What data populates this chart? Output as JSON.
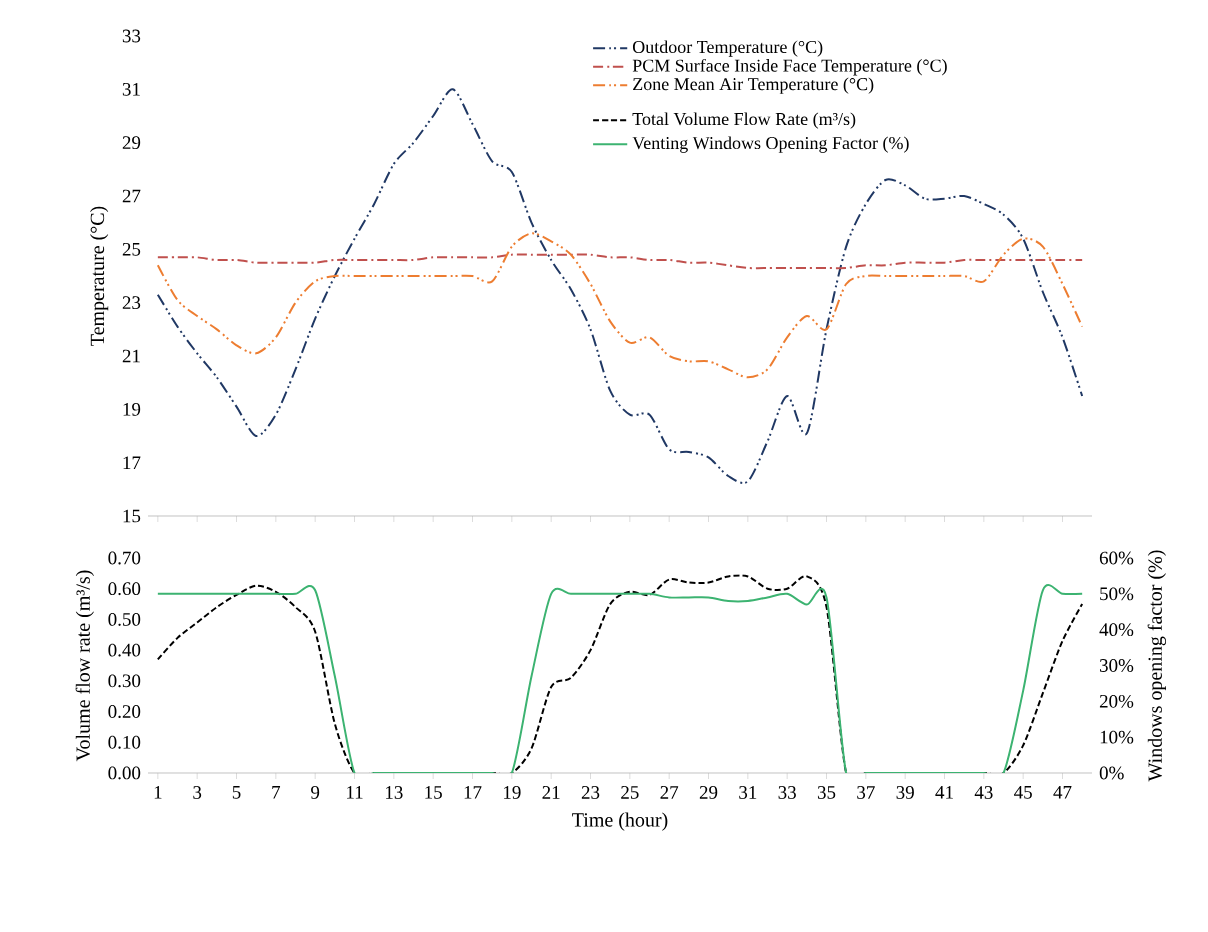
{
  "chart_data": [
    {
      "type": "line",
      "ylabel": "Temperature (°C)",
      "legend": "top",
      "tick_labels": "y",
      "x": [
        1,
        2,
        3,
        4,
        5,
        6,
        7,
        8,
        9,
        10,
        11,
        12,
        13,
        14,
        15,
        16,
        17,
        18,
        19,
        20,
        21,
        22,
        23,
        24,
        25,
        26,
        27,
        28,
        29,
        30,
        31,
        32,
        33,
        34,
        35,
        36,
        37,
        38,
        39,
        40,
        41,
        42,
        43,
        44,
        45,
        46,
        47,
        48
      ],
      "xlim": [
        0.5,
        48.5
      ],
      "xticks": [
        1,
        3,
        5,
        7,
        9,
        11,
        13,
        15,
        17,
        19,
        21,
        23,
        25,
        27,
        29,
        31,
        33,
        35,
        37,
        39,
        41,
        43,
        45,
        47
      ],
      "ylim": [
        15,
        33
      ],
      "yticks": [
        15,
        17,
        19,
        21,
        23,
        25,
        27,
        29,
        31,
        33
      ],
      "series": [
        {
          "name": "Outdoor Temperature (°C)",
          "color": "#203864",
          "line_style": "dashdotdot",
          "values": [
            23.3,
            22.1,
            21.1,
            20.2,
            19.1,
            18.0,
            18.8,
            20.5,
            22.4,
            24.0,
            25.4,
            26.7,
            28.2,
            29.0,
            30.0,
            31.0,
            29.7,
            28.3,
            27.9,
            26.0,
            24.6,
            23.5,
            22.0,
            19.7,
            18.8,
            18.8,
            17.5,
            17.4,
            17.2,
            16.5,
            16.3,
            17.8,
            19.5,
            18.1,
            22.0,
            25.1,
            26.7,
            27.6,
            27.4,
            26.9,
            26.9,
            27.0,
            26.7,
            26.3,
            25.4,
            23.4,
            21.7,
            19.5
          ]
        },
        {
          "name": "PCM Surface Inside Face Temperature (°C)",
          "color": "#c0504d",
          "line_style": "dashdot",
          "values": [
            24.7,
            24.7,
            24.7,
            24.6,
            24.6,
            24.5,
            24.5,
            24.5,
            24.5,
            24.6,
            24.6,
            24.6,
            24.6,
            24.6,
            24.7,
            24.7,
            24.7,
            24.7,
            24.8,
            24.8,
            24.8,
            24.8,
            24.8,
            24.7,
            24.7,
            24.6,
            24.6,
            24.5,
            24.5,
            24.4,
            24.3,
            24.3,
            24.3,
            24.3,
            24.3,
            24.3,
            24.4,
            24.4,
            24.5,
            24.5,
            24.5,
            24.6,
            24.6,
            24.6,
            24.6,
            24.6,
            24.6,
            24.6
          ]
        },
        {
          "name": "Zone Mean Air Temperature (°C)",
          "color": "#ed7d31",
          "line_style": "dashdotdot",
          "values": [
            24.4,
            23.1,
            22.5,
            22.0,
            21.4,
            21.1,
            21.7,
            23.0,
            23.8,
            24.0,
            24.0,
            24.0,
            24.0,
            24.0,
            24.0,
            24.0,
            24.0,
            23.8,
            25.1,
            25.6,
            25.3,
            24.8,
            23.7,
            22.3,
            21.5,
            21.7,
            21.0,
            20.8,
            20.8,
            20.5,
            20.2,
            20.5,
            21.7,
            22.5,
            22.0,
            23.7,
            24.0,
            24.0,
            24.0,
            24.0,
            24.0,
            24.0,
            23.8,
            24.8,
            25.4,
            25.1,
            23.7,
            22.1
          ]
        }
      ]
    },
    {
      "type": "line",
      "xlabel": "Time (hour)",
      "ylabel": "Volume flow rate (m³/s)",
      "y2label": "Windows opening factor (%)",
      "legend": "top",
      "x": [
        1,
        2,
        3,
        4,
        5,
        6,
        7,
        8,
        9,
        10,
        11,
        12,
        13,
        14,
        15,
        16,
        17,
        18,
        19,
        20,
        21,
        22,
        23,
        24,
        25,
        26,
        27,
        28,
        29,
        30,
        31,
        32,
        33,
        34,
        35,
        36,
        37,
        38,
        39,
        40,
        41,
        42,
        43,
        44,
        45,
        46,
        47,
        48
      ],
      "xlim": [
        0.5,
        48.5
      ],
      "xticks": [
        1,
        3,
        5,
        7,
        9,
        11,
        13,
        15,
        17,
        19,
        21,
        23,
        25,
        27,
        29,
        31,
        33,
        35,
        37,
        39,
        41,
        43,
        45,
        47
      ],
      "ylim": [
        0,
        0.7
      ],
      "yticks": [
        {
          "value": 0,
          "label": "0.00"
        },
        {
          "value": 0.1,
          "label": "0.10"
        },
        {
          "value": 0.2,
          "label": "0.20"
        },
        {
          "value": 0.3,
          "label": "0.30"
        },
        {
          "value": 0.4,
          "label": "0.40"
        },
        {
          "value": 0.5,
          "label": "0.50"
        },
        {
          "value": 0.6,
          "label": "0.60"
        },
        {
          "value": 0.7,
          "label": "0.70"
        }
      ],
      "y2lim": [
        0,
        60
      ],
      "y2ticks": [
        {
          "value": 0,
          "label": "0%"
        },
        {
          "value": 10,
          "label": "10%"
        },
        {
          "value": 20,
          "label": "20%"
        },
        {
          "value": 30,
          "label": "30%"
        },
        {
          "value": 40,
          "label": "40%"
        },
        {
          "value": 50,
          "label": "50%"
        },
        {
          "value": 60,
          "label": "60%"
        }
      ],
      "series": [
        {
          "name": "Total Volume Flow Rate (m³/s)",
          "color": "#000000",
          "line_style": "dashed",
          "values": [
            0.37,
            0.44,
            0.49,
            0.54,
            0.58,
            0.61,
            0.59,
            0.54,
            0.46,
            0.16,
            0.0,
            0.0,
            0.0,
            0.0,
            0.0,
            0.0,
            0.0,
            0.0,
            0.0,
            0.08,
            0.28,
            0.31,
            0.4,
            0.55,
            0.59,
            0.58,
            0.63,
            0.62,
            0.62,
            0.64,
            0.64,
            0.6,
            0.6,
            0.64,
            0.54,
            0.0,
            0.0,
            0.0,
            0.0,
            0.0,
            0.0,
            0.0,
            0.0,
            0.0,
            0.09,
            0.26,
            0.43,
            0.55
          ]
        },
        {
          "name": "Venting Windows Opening Factor (%)",
          "color": "#3cb371",
          "line_style": "solid",
          "axis": "y2",
          "values": [
            50,
            50,
            50,
            50,
            50,
            50,
            50,
            50,
            51,
            27,
            0,
            0,
            0,
            0,
            0,
            0,
            0,
            0,
            0,
            27,
            50,
            50,
            50,
            50,
            50,
            50,
            49,
            49,
            49,
            48,
            48,
            49,
            50,
            47,
            49,
            0,
            0,
            0,
            0,
            0,
            0,
            0,
            0,
            0,
            23,
            51,
            50,
            50
          ]
        }
      ]
    }
  ]
}
